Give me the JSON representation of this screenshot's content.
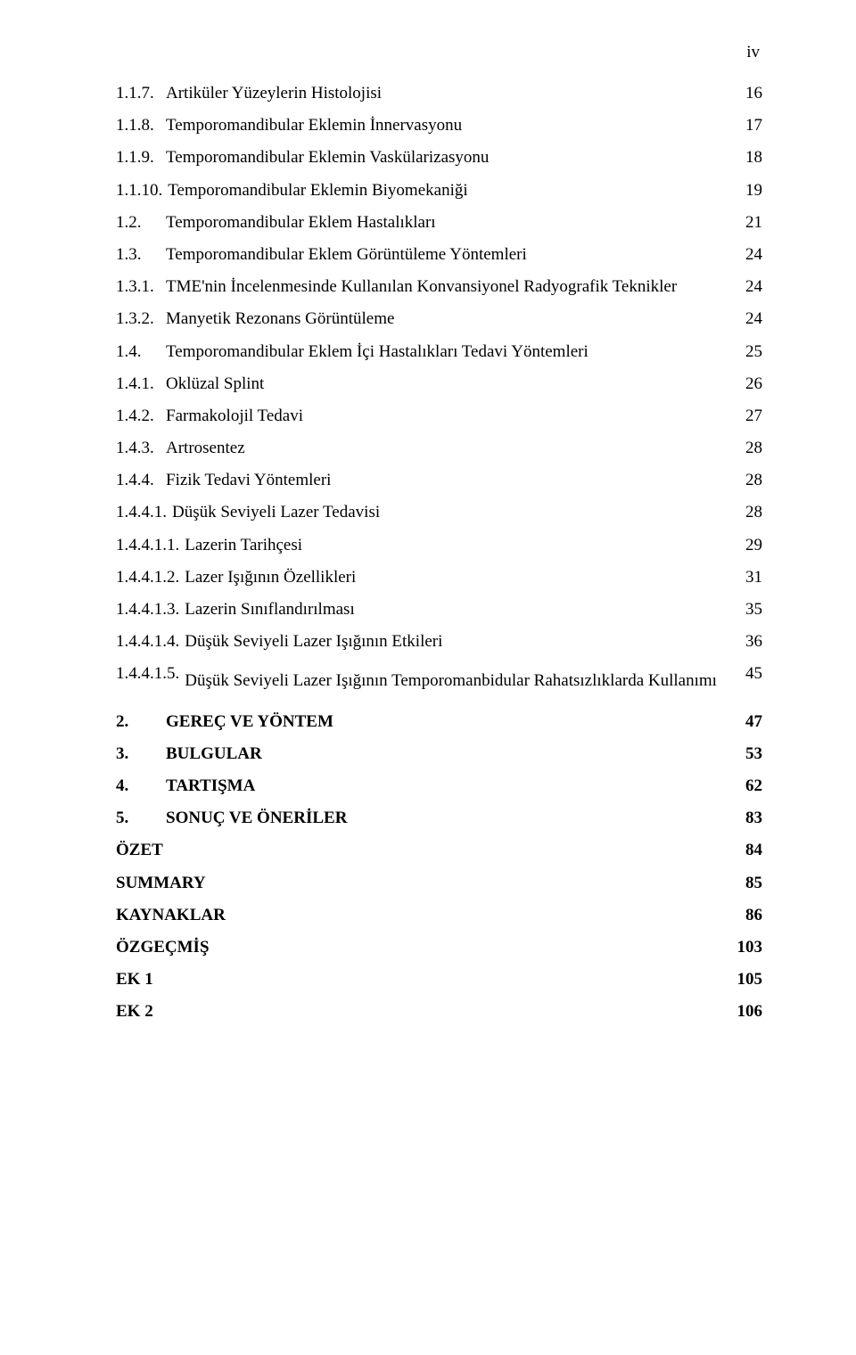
{
  "page_marker": "iv",
  "entries": [
    {
      "num": "1.1.7.",
      "title": "Artiküler Yüzeylerin Histolojisi",
      "page": "16",
      "level": 0,
      "bold": false
    },
    {
      "num": "1.1.8.",
      "title": "Temporomandibular Eklemin İnnervasyonu",
      "page": "17",
      "level": 0,
      "bold": false
    },
    {
      "num": "1.1.9.",
      "title": "Temporomandibular Eklemin Vaskülarizasyonu",
      "page": "18",
      "level": 0,
      "bold": false
    },
    {
      "num": "1.1.10.",
      "title": "Temporomandibular Eklemin Biyomekaniği",
      "page": "19",
      "level": 0,
      "bold": false
    },
    {
      "num": "1.2.",
      "title": "Temporomandibular Eklem Hastalıkları",
      "page": "21",
      "level": 0,
      "bold": false
    },
    {
      "num": "1.3.",
      "title": "Temporomandibular Eklem Görüntüleme Yöntemleri",
      "page": "24",
      "level": 0,
      "bold": false
    },
    {
      "num": "1.3.1.",
      "title": "TME'nin İncelenmesinde Kullanılan Konvansiyonel Radyografik Teknikler",
      "page": "24",
      "level": 0,
      "bold": false
    },
    {
      "num": "1.3.2.",
      "title": "Manyetik Rezonans Görüntüleme",
      "page": "24",
      "level": 0,
      "bold": false
    },
    {
      "num": "1.4.",
      "title": "Temporomandibular Eklem İçi Hastalıkları Tedavi Yöntemleri",
      "page": "25",
      "level": 0,
      "bold": false
    },
    {
      "num": "1.4.1.",
      "title": "Oklüzal Splint",
      "page": "26",
      "level": 0,
      "bold": false
    },
    {
      "num": "1.4.2.",
      "title": "Farmakolojil Tedavi",
      "page": "27",
      "level": 0,
      "bold": false
    },
    {
      "num": "1.4.3.",
      "title": "Artrosentez",
      "page": "28",
      "level": 0,
      "bold": false
    },
    {
      "num": "1.4.4.",
      "title": "Fizik Tedavi Yöntemleri",
      "page": "28",
      "level": 0,
      "bold": false
    },
    {
      "num": "1.4.4.1.",
      "title": "Düşük Seviyeli Lazer Tedavisi",
      "page": "28",
      "level": 0,
      "bold": false
    },
    {
      "num": "1.4.4.1.1.",
      "title": "Lazerin Tarihçesi",
      "page": "29",
      "level": 0,
      "bold": false
    },
    {
      "num": "1.4.4.1.2.",
      "title": "Lazer Işığının  Özellikleri",
      "page": "31",
      "level": 0,
      "bold": false
    },
    {
      "num": "1.4.4.1.3.",
      "title": "Lazerin Sınıflandırılması",
      "page": "35",
      "level": 0,
      "bold": false
    },
    {
      "num": "1.4.4.1.4.",
      "title": "Düşük Seviyeli Lazer Işığının Etkileri",
      "page": "36",
      "level": 0,
      "bold": false
    },
    {
      "num": "1.4.4.1.5.",
      "title": "Düşük Seviyeli  Lazer   Işığının   Temporomanbidular Rahatsızlıklarda     Kullanımı",
      "page": "45",
      "level": 0,
      "bold": false,
      "multiline": true
    },
    {
      "num": "2.",
      "title": "GEREÇ VE YÖNTEM",
      "page": "47",
      "level": 1,
      "bold": true
    },
    {
      "num": "3.",
      "title": "BULGULAR",
      "page": "53",
      "level": 1,
      "bold": true
    },
    {
      "num": "4.",
      "title": "TARTIŞMA",
      "page": "62",
      "level": 1,
      "bold": true
    },
    {
      "num": "5.",
      "title": "SONUÇ VE ÖNERİLER",
      "page": "83",
      "level": 1,
      "bold": true
    },
    {
      "num": "",
      "title": "ÖZET",
      "page": "84",
      "level": 1,
      "bold": true,
      "no_num": true
    },
    {
      "num": "",
      "title": "SUMMARY",
      "page": "85",
      "level": 1,
      "bold": true,
      "no_num": true
    },
    {
      "num": "",
      "title": "KAYNAKLAR",
      "page": "86",
      "level": 1,
      "bold": true,
      "no_num": true
    },
    {
      "num": "",
      "title": "ÖZGEÇMİŞ",
      "page": "103",
      "level": 1,
      "bold": true,
      "no_num": true
    },
    {
      "num": "",
      "title": "EK 1",
      "page": "105",
      "level": 1,
      "bold": true,
      "no_num": true
    },
    {
      "num": "",
      "title": "EK 2",
      "page": "106",
      "level": 1,
      "bold": true,
      "no_num": true
    }
  ]
}
